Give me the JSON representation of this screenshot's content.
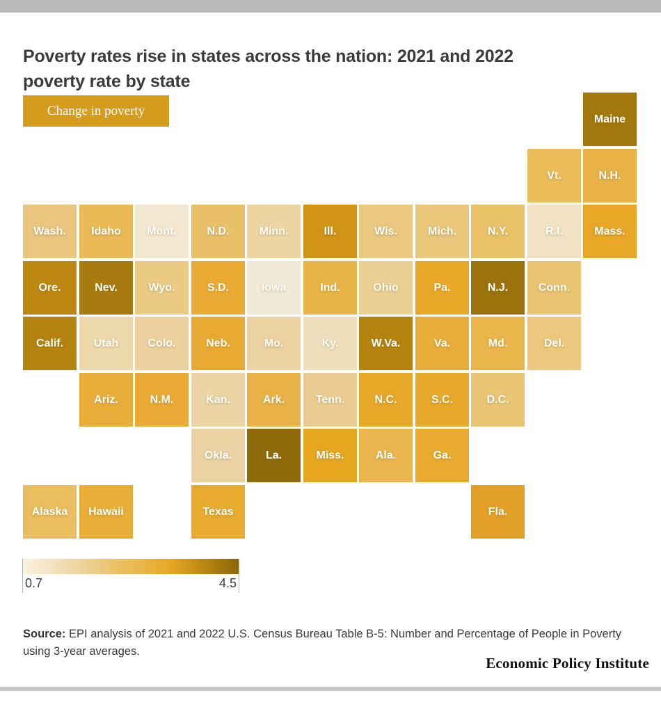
{
  "page": {
    "title_line1": "Poverty rates rise in states across the nation: 2021 and 2022",
    "title_line2": "poverty rate by state",
    "legend_chip_label": "Change in poverty",
    "source_label": "Source:",
    "source_text": " EPI analysis of 2021 and 2022 U.S. Census Bureau Table B-5:  Number and Percentage of People in Poverty using 3-year averages.",
    "wordmark": "Economic Policy Institute",
    "colors": {
      "accent_chip_bg": "#d69c1e",
      "top_bar": "#b9b9b9",
      "bottom_bar": "#c6c6c6",
      "title_text": "#3b3b3b",
      "body_text": "#3a3a3a"
    }
  },
  "chart_data": {
    "type": "heatmap",
    "subtype": "us-state-tile-cartogram",
    "title": "Poverty rates rise in states across the nation: 2021 and 2022 poverty rate by state",
    "measure": "Change in poverty",
    "scale": {
      "min": 0.7,
      "max": 4.5,
      "min_label": "0.7",
      "max_label": "4.5",
      "gradient": [
        "#faf3df",
        "#efd9ab",
        "#eabf62",
        "#e8a826",
        "#b5830f",
        "#8a6508"
      ]
    },
    "legend_position": "top-left",
    "states": [
      {
        "label": "Maine",
        "row": 0,
        "col": 10,
        "color": "#a2780f",
        "value_est": 4.1
      },
      {
        "label": "Vt.",
        "row": 1,
        "col": 9,
        "color": "#ebbc59",
        "value_est": 2.3
      },
      {
        "label": "N.H.",
        "row": 1,
        "col": 10,
        "color": "#e9b246",
        "value_est": 2.5
      },
      {
        "label": "Wash.",
        "row": 2,
        "col": 0,
        "color": "#eac57d",
        "value_est": 1.9
      },
      {
        "label": "Idaho",
        "row": 2,
        "col": 1,
        "color": "#e9ba55",
        "value_est": 2.3
      },
      {
        "label": "Mont.",
        "row": 2,
        "col": 2,
        "color": "#f2e8d1",
        "value_est": 0.8
      },
      {
        "label": "N.D.",
        "row": 2,
        "col": 3,
        "color": "#e9c068",
        "value_est": 2.1
      },
      {
        "label": "Minn.",
        "row": 2,
        "col": 4,
        "color": "#edd5a2",
        "value_est": 1.4
      },
      {
        "label": "Ill.",
        "row": 2,
        "col": 5,
        "color": "#d29417",
        "value_est": 3.4
      },
      {
        "label": "Wis.",
        "row": 2,
        "col": 6,
        "color": "#eac87f",
        "value_est": 1.9
      },
      {
        "label": "Mich.",
        "row": 2,
        "col": 7,
        "color": "#eac67a",
        "value_est": 2.0
      },
      {
        "label": "N.Y.",
        "row": 2,
        "col": 8,
        "color": "#e9c166",
        "value_est": 2.1
      },
      {
        "label": "R.I.",
        "row": 2,
        "col": 9,
        "color": "#f0e2c2",
        "value_est": 1.0
      },
      {
        "label": "Mass.",
        "row": 2,
        "col": 10,
        "color": "#e8a727",
        "value_est": 3.0
      },
      {
        "label": "Ore.",
        "row": 3,
        "col": 0,
        "color": "#bd8812",
        "value_est": 3.7
      },
      {
        "label": "Nev.",
        "row": 3,
        "col": 1,
        "color": "#a87b10",
        "value_est": 4.0
      },
      {
        "label": "Wyo.",
        "row": 3,
        "col": 2,
        "color": "#ebca83",
        "value_est": 1.8
      },
      {
        "label": "S.D.",
        "row": 3,
        "col": 3,
        "color": "#e9ab33",
        "value_est": 2.8
      },
      {
        "label": "Iowa",
        "row": 3,
        "col": 4,
        "color": "#f2ead6",
        "value_est": 0.7
      },
      {
        "label": "Ind.",
        "row": 3,
        "col": 5,
        "color": "#e9b447",
        "value_est": 2.5
      },
      {
        "label": "Ohio",
        "row": 3,
        "col": 6,
        "color": "#eccf93",
        "value_est": 1.5
      },
      {
        "label": "Pa.",
        "row": 3,
        "col": 7,
        "color": "#e8a828",
        "value_est": 3.0
      },
      {
        "label": "N.J.",
        "row": 3,
        "col": 8,
        "color": "#9c720d",
        "value_est": 4.2
      },
      {
        "label": "Conn.",
        "row": 3,
        "col": 9,
        "color": "#eac470",
        "value_est": 2.0
      },
      {
        "label": "Calif.",
        "row": 4,
        "col": 0,
        "color": "#b5830f",
        "value_est": 3.8
      },
      {
        "label": "Utah",
        "row": 4,
        "col": 1,
        "color": "#edd8ac",
        "value_est": 1.3
      },
      {
        "label": "Colo.",
        "row": 4,
        "col": 2,
        "color": "#ecd19e",
        "value_est": 1.4
      },
      {
        "label": "Neb.",
        "row": 4,
        "col": 3,
        "color": "#e9aa33",
        "value_est": 2.8
      },
      {
        "label": "Mo.",
        "row": 4,
        "col": 4,
        "color": "#ecd2a0",
        "value_est": 1.4
      },
      {
        "label": "Ky.",
        "row": 4,
        "col": 5,
        "color": "#f0dfbc",
        "value_est": 1.1
      },
      {
        "label": "W.Va.",
        "row": 4,
        "col": 6,
        "color": "#b5830f",
        "value_est": 3.8
      },
      {
        "label": "Va.",
        "row": 4,
        "col": 7,
        "color": "#e9ad3a",
        "value_est": 2.7
      },
      {
        "label": "Md.",
        "row": 4,
        "col": 8,
        "color": "#eab54b",
        "value_est": 2.4
      },
      {
        "label": "Del.",
        "row": 4,
        "col": 9,
        "color": "#ebc87e",
        "value_est": 1.9
      },
      {
        "label": "Ariz.",
        "row": 5,
        "col": 1,
        "color": "#e9ad3a",
        "value_est": 2.7
      },
      {
        "label": "N.M.",
        "row": 5,
        "col": 2,
        "color": "#e9ab35",
        "value_est": 2.8
      },
      {
        "label": "Kan.",
        "row": 5,
        "col": 3,
        "color": "#ecd4a5",
        "value_est": 1.4
      },
      {
        "label": "Ark.",
        "row": 5,
        "col": 4,
        "color": "#e9b247",
        "value_est": 2.5
      },
      {
        "label": "Tenn.",
        "row": 5,
        "col": 5,
        "color": "#ebcc90",
        "value_est": 1.6
      },
      {
        "label": "N.C.",
        "row": 5,
        "col": 6,
        "color": "#e8a827",
        "value_est": 3.0
      },
      {
        "label": "S.C.",
        "row": 5,
        "col": 7,
        "color": "#e8a82a",
        "value_est": 3.0
      },
      {
        "label": "D.C.",
        "row": 5,
        "col": 8,
        "color": "#eac573",
        "value_est": 2.0
      },
      {
        "label": "Okla.",
        "row": 6,
        "col": 3,
        "color": "#ebd2a2",
        "value_est": 1.4
      },
      {
        "label": "La.",
        "row": 6,
        "col": 4,
        "color": "#8f6a0b",
        "value_est": 4.5
      },
      {
        "label": "Miss.",
        "row": 6,
        "col": 5,
        "color": "#e7a61f",
        "value_est": 3.1
      },
      {
        "label": "Ala.",
        "row": 6,
        "col": 6,
        "color": "#eab54c",
        "value_est": 2.4
      },
      {
        "label": "Ga.",
        "row": 6,
        "col": 7,
        "color": "#e8ab30",
        "value_est": 2.9
      },
      {
        "label": "Alaska",
        "row": 7,
        "col": 0,
        "color": "#eabd5f",
        "value_est": 2.2
      },
      {
        "label": "Hawaii",
        "row": 7,
        "col": 1,
        "color": "#e9ae38",
        "value_est": 2.7
      },
      {
        "label": "Texas",
        "row": 7,
        "col": 3,
        "color": "#e8ab30",
        "value_est": 2.9
      },
      {
        "label": "Fla.",
        "row": 7,
        "col": 8,
        "color": "#e2a028",
        "value_est": 3.0
      }
    ]
  }
}
